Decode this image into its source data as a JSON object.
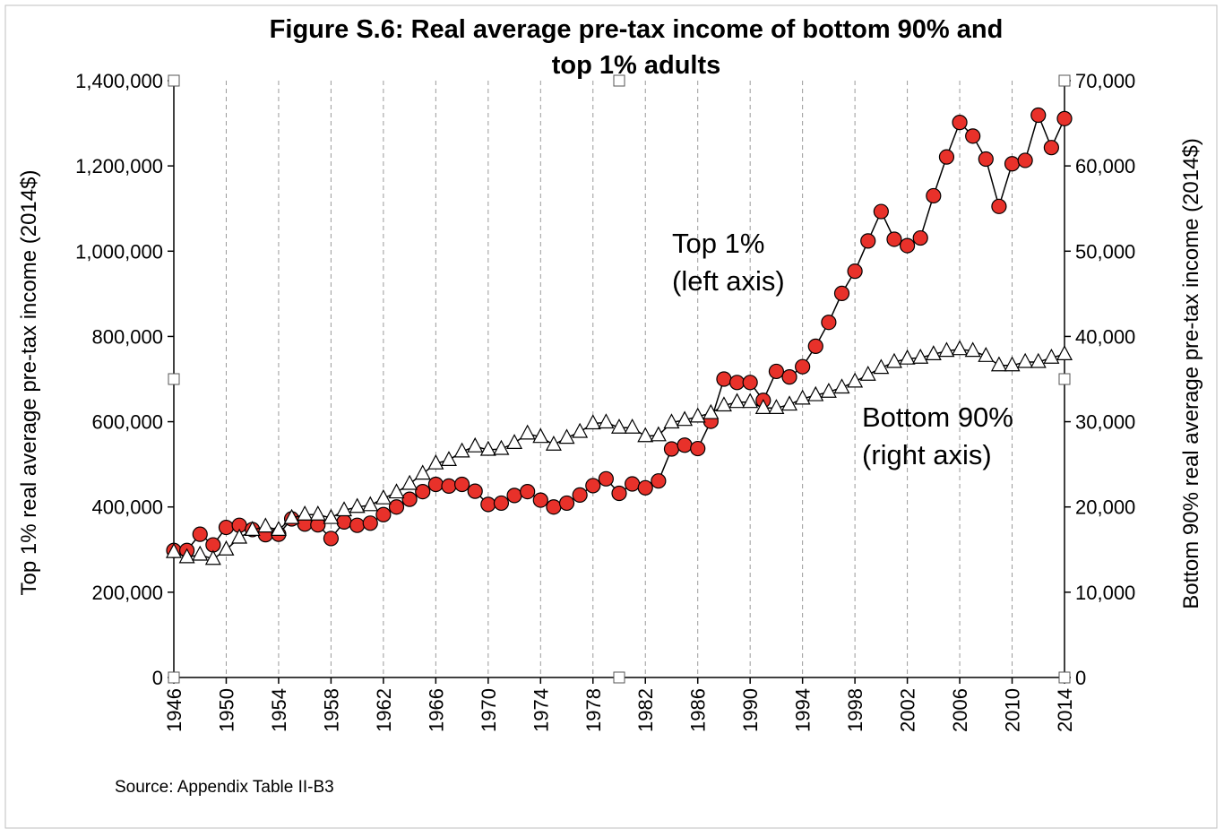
{
  "chart_data": {
    "type": "line",
    "title_line1": "Figure S.6: Real average pre-tax income of bottom 90% and",
    "title_line2": "top 1% adults",
    "ylabel_left": "Top 1% real average pre-tax income (2014$)",
    "ylabel_right": "Bottom 90% real average pre-tax income (2014$)",
    "ylim_left": [
      0,
      1400000
    ],
    "ylim_right": [
      0,
      70000
    ],
    "yticks_left": [
      "0",
      "200,000",
      "400,000",
      "600,000",
      "800,000",
      "1,000,000",
      "1,200,000",
      "1,400,000"
    ],
    "yticks_right": [
      "0",
      "10,000",
      "20,000",
      "30,000",
      "40,000",
      "50,000",
      "60,000",
      "70,000"
    ],
    "xlim": [
      1946,
      2014
    ],
    "xticks": [
      "1946",
      "1950",
      "1954",
      "1958",
      "1962",
      "1966",
      "1970",
      "1974",
      "1978",
      "1982",
      "1986",
      "1990",
      "1994",
      "1998",
      "2002",
      "2006",
      "2010",
      "2014"
    ],
    "grid_vertical": true,
    "annotation_top1_line1": "Top 1%",
    "annotation_top1_line2": "(left axis)",
    "annotation_bottom90_line1": "Bottom 90%",
    "annotation_bottom90_line2": "(right axis)",
    "source": "Source: Appendix Table II-B3",
    "x": [
      1946,
      1947,
      1948,
      1949,
      1950,
      1951,
      1952,
      1953,
      1954,
      1955,
      1956,
      1957,
      1958,
      1959,
      1960,
      1961,
      1962,
      1963,
      1964,
      1965,
      1966,
      1967,
      1968,
      1969,
      1970,
      1971,
      1972,
      1973,
      1974,
      1975,
      1976,
      1977,
      1978,
      1979,
      1980,
      1981,
      1982,
      1983,
      1984,
      1985,
      1986,
      1987,
      1988,
      1989,
      1990,
      1991,
      1992,
      1993,
      1994,
      1995,
      1996,
      1997,
      1998,
      1999,
      2000,
      2001,
      2002,
      2003,
      2004,
      2005,
      2006,
      2007,
      2008,
      2009,
      2010,
      2011,
      2012,
      2013,
      2014
    ],
    "series": [
      {
        "name": "Top 1%",
        "axis": "left",
        "marker": "circle",
        "color": "#e8312a",
        "values": [
          298000,
          298000,
          336000,
          311000,
          352000,
          357000,
          347000,
          335000,
          336000,
          372000,
          360000,
          358000,
          326000,
          365000,
          357000,
          362000,
          382000,
          400000,
          418000,
          436000,
          453000,
          449000,
          453000,
          437000,
          406000,
          409000,
          427000,
          436000,
          416000,
          400000,
          409000,
          428000,
          450000,
          466000,
          432000,
          454000,
          445000,
          461000,
          536000,
          545000,
          537000,
          601000,
          700000,
          692000,
          692000,
          650000,
          718000,
          705000,
          729000,
          777000,
          833000,
          901000,
          953000,
          1024000,
          1093000,
          1028000,
          1013000,
          1031000,
          1130000,
          1221000,
          1302000,
          1270000,
          1216000,
          1105000,
          1205000,
          1213000,
          1319000,
          1243000,
          1311000
        ]
      },
      {
        "name": "Bottom 90%",
        "axis": "right",
        "marker": "triangle",
        "color": "#ffffff",
        "values": [
          14700,
          14100,
          14400,
          13900,
          15000,
          16400,
          17300,
          17700,
          17300,
          18700,
          19100,
          19100,
          18700,
          19600,
          20000,
          20200,
          21000,
          21700,
          22700,
          23900,
          25100,
          25500,
          26500,
          27100,
          26700,
          26800,
          27500,
          28600,
          28200,
          27300,
          28100,
          28800,
          29800,
          29900,
          29300,
          29300,
          28300,
          28400,
          29900,
          30200,
          30600,
          31000,
          31900,
          32300,
          32300,
          31600,
          31600,
          32000,
          32700,
          33100,
          33500,
          34000,
          34700,
          35500,
          36300,
          37000,
          37400,
          37500,
          37900,
          38300,
          38500,
          38300,
          37700,
          36600,
          36600,
          37000,
          37000,
          37500,
          37900
        ]
      }
    ]
  }
}
